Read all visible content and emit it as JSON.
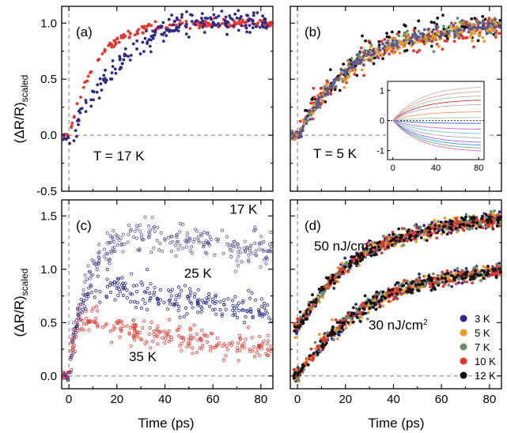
{
  "colors": {
    "red": "#e8332a",
    "navy": "#2e2a8a",
    "purple": "#5a5696",
    "blue_dark": "#23208a",
    "orange": "#f29a1f",
    "green": "#6a8f68",
    "black": "#111111"
  },
  "chart_data": [
    {
      "panel": "(a)",
      "type": "scatter",
      "annotation": "T = 17 K",
      "ylabel": "(ΔR/R)",
      "ylabel_sub": "scaled",
      "xlim": [
        -3,
        85
      ],
      "ylim": [
        -0.5,
        1.15
      ],
      "xticks": [
        0,
        20,
        40,
        60,
        80
      ],
      "yticks": [
        -0.5,
        0.0,
        0.5,
        1.0
      ],
      "ytick_labels": [
        "-0.5",
        "0.0",
        "0.5",
        "1.0"
      ],
      "series": [
        {
          "color": "red",
          "model": "rise",
          "amp": 1.0,
          "tau": 11,
          "dip": -0.05,
          "noise": 0.02,
          "n": 170
        },
        {
          "color": "navy",
          "model": "rise",
          "amp": 1.3,
          "tau": 32,
          "dip": -0.3,
          "noise": 0.05,
          "n": 200
        }
      ]
    },
    {
      "panel": "(b)",
      "type": "scatter",
      "annotation": "T = 5 K",
      "xlim": [
        -3,
        85
      ],
      "ylim": [
        -0.5,
        1.15
      ],
      "xticks": [
        0,
        20,
        40,
        60,
        80
      ],
      "yticks": [
        -0.5,
        0.0,
        0.5,
        1.0
      ],
      "series": [
        {
          "color": "black",
          "model": "rise",
          "amp": 1.02,
          "tau": 24,
          "dip": -0.05,
          "noise": 0.06,
          "n": 160
        },
        {
          "color": "red",
          "model": "rise",
          "amp": 1.0,
          "tau": 25,
          "dip": -0.05,
          "noise": 0.06,
          "n": 160
        },
        {
          "color": "green",
          "model": "rise",
          "amp": 1.0,
          "tau": 24,
          "dip": -0.05,
          "noise": 0.04,
          "n": 160
        },
        {
          "color": "orange",
          "model": "rise",
          "amp": 1.0,
          "tau": 25,
          "dip": -0.05,
          "noise": 0.04,
          "n": 160
        },
        {
          "color": "purple",
          "model": "rise",
          "amp": 1.0,
          "tau": 24,
          "dip": -0.05,
          "noise": 0.03,
          "n": 160
        }
      ],
      "inset": {
        "xlim": [
          -5,
          85
        ],
        "ylim": [
          -1.3,
          1.3
        ],
        "xticks": [
          0,
          40,
          80
        ],
        "yticks": [
          -1,
          0,
          1
        ],
        "curve_finals": [
          1.15,
          1.0,
          0.85,
          0.7,
          0.55,
          0.3,
          0.1,
          -0.1,
          -0.3,
          -0.45,
          -0.6,
          -0.75,
          -0.85,
          -0.95,
          -1.05
        ],
        "curve_colors": [
          "#bbbbbb",
          "#e0a090",
          "#a0c0a0",
          "#cc3333",
          "#c0a0d0",
          "#ff9966",
          "#99cc99",
          "#3366cc",
          "#cc66cc",
          "#66cccc",
          "#aaaaaa",
          "#9966ff",
          "#3399ff",
          "#66aa66",
          "#ff66aa"
        ]
      }
    },
    {
      "panel": "(c)",
      "type": "scatter",
      "ylabel": "(ΔR/R)",
      "ylabel_sub": "scaled",
      "xlabel": "Time (ps)",
      "xlim": [
        -3,
        85
      ],
      "ylim": [
        -0.12,
        1.65
      ],
      "xticks": [
        0,
        20,
        40,
        60,
        80
      ],
      "xtick_labels": [
        "0",
        "20",
        "40",
        "60",
        "80"
      ],
      "yticks": [
        0.0,
        0.5,
        1.0,
        1.5
      ],
      "ytick_labels": [
        "0.0",
        "0.5",
        "1.0",
        "1.5"
      ],
      "series": [
        {
          "name": "17 K",
          "color": "purple",
          "model": "risedecay",
          "amp": 1.45,
          "tau": 8,
          "decay": 0.0025,
          "noise": 0.08,
          "n": 260,
          "open": true
        },
        {
          "name": "25 K",
          "color": "blue_dark",
          "model": "risedecay",
          "amp": 0.9,
          "tau": 4,
          "decay": 0.005,
          "noise": 0.07,
          "n": 230,
          "open": true
        },
        {
          "name": "35 K",
          "color": "red",
          "model": "risedecay",
          "amp": 0.55,
          "tau": 2,
          "decay": 0.009,
          "noise": 0.06,
          "n": 230,
          "open": true
        }
      ]
    },
    {
      "panel": "(d)",
      "type": "scatter",
      "xlabel": "Time (ps)",
      "xlim": [
        -3,
        85
      ],
      "ylim": [
        -0.12,
        1.65
      ],
      "xticks": [
        0,
        20,
        40,
        60,
        80
      ],
      "xtick_labels": [
        "0",
        "20",
        "40",
        "60",
        "80"
      ],
      "yticks": [
        0.0,
        0.5,
        1.0,
        1.5
      ],
      "upper_label": "50 nJ/cm",
      "lower_label": "30 nJ/cm",
      "unit_exponent": "2",
      "legend": [
        "3 K",
        "5 K",
        "7 K",
        "10 K",
        "12 K"
      ],
      "legend_colors": [
        "navy",
        "orange",
        "green",
        "red",
        "black"
      ],
      "groups": [
        {
          "offset": 0.45,
          "amp": 1.05,
          "tau": 26
        },
        {
          "offset": 0.0,
          "amp": 1.05,
          "tau": 30
        }
      ]
    }
  ]
}
